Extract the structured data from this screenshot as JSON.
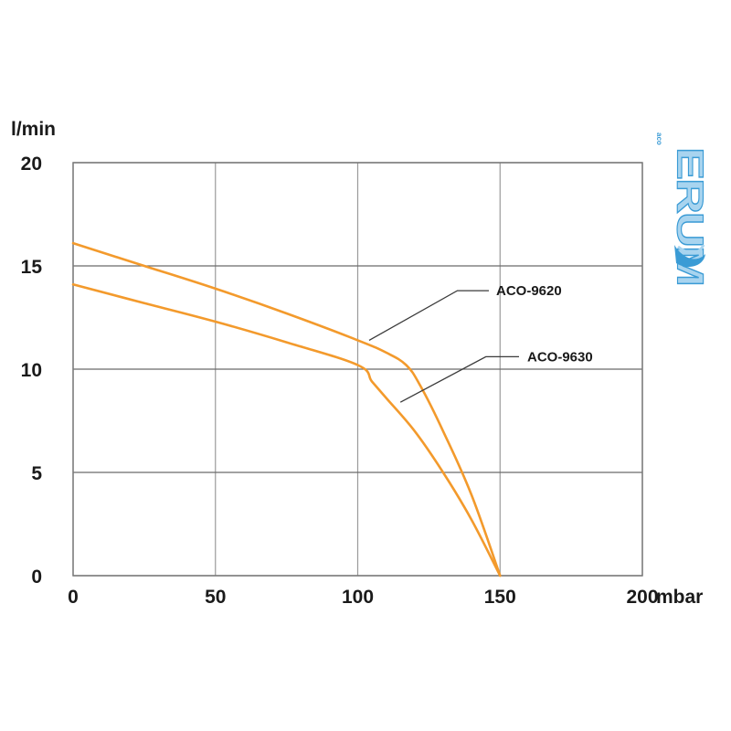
{
  "chart_data": {
    "type": "line",
    "xlabel": "mbar",
    "ylabel": "l/min",
    "xlim": [
      0,
      200
    ],
    "ylim": [
      0,
      20
    ],
    "x_ticks": [
      "0",
      "50",
      "100",
      "150",
      "200"
    ],
    "y_ticks": [
      "0",
      "5",
      "10",
      "15",
      "20"
    ],
    "grid": true,
    "series": [
      {
        "name": "ACO-9620",
        "color": "#f39a2c",
        "x": [
          0,
          25,
          50,
          75,
          100,
          110,
          117,
          122,
          130,
          140,
          150
        ],
        "y": [
          16.1,
          15.0,
          13.9,
          12.7,
          11.4,
          10.8,
          10.2,
          9.2,
          7.0,
          3.9,
          0
        ]
      },
      {
        "name": "ACO-9630",
        "color": "#f39a2c",
        "x": [
          0,
          25,
          50,
          75,
          100,
          105,
          110,
          120,
          130,
          140,
          150
        ],
        "y": [
          14.1,
          13.2,
          12.3,
          11.3,
          10.2,
          9.4,
          8.6,
          7.0,
          5.0,
          2.7,
          0
        ]
      }
    ],
    "annotations": [
      {
        "text": "ACO-9620",
        "series": "ACO-9620"
      },
      {
        "text": "ACO-9630",
        "series": "ACO-9630"
      }
    ]
  },
  "logo": {
    "text": "ERUM",
    "small_text": "aco",
    "colors": {
      "primary": "#3a9bd5",
      "light": "#a8d4ef"
    }
  }
}
